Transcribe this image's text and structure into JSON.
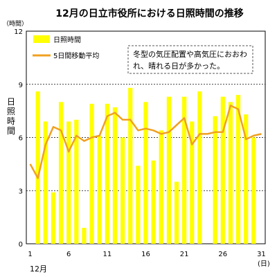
{
  "chart_data": {
    "type": "bar",
    "title": "12月の日立市役所における日照時間の推移",
    "y_unit": "（時間）",
    "ylabel": "日照時間",
    "xlabel_month": "12月",
    "x_unit": "(日)",
    "ylim": [
      0,
      12
    ],
    "yticks": [
      0,
      3,
      6,
      9,
      12
    ],
    "xticks": [
      1,
      6,
      11,
      16,
      21,
      26,
      31
    ],
    "grid": "horizontal dashed",
    "x": [
      1,
      2,
      3,
      4,
      5,
      6,
      7,
      8,
      9,
      10,
      11,
      12,
      13,
      14,
      15,
      16,
      17,
      18,
      19,
      20,
      21,
      22,
      23,
      24,
      25,
      26,
      27,
      28,
      29,
      30,
      31
    ],
    "series": [
      {
        "name": "日照時間",
        "kind": "bar",
        "color": "#ffff00",
        "values": [
          0,
          8.6,
          6.9,
          2.9,
          8.0,
          6.9,
          7.0,
          0.9,
          7.9,
          6.1,
          7.9,
          7.7,
          6.0,
          8.8,
          4.4,
          8.0,
          4.7,
          6.4,
          8.3,
          3.5,
          8.3,
          6.9,
          8.6,
          0,
          7.2,
          8.3,
          8.0,
          8.4,
          7.3,
          6.0,
          0
        ]
      },
      {
        "name": "5日間移動平均",
        "kind": "line",
        "color": "#f0a020",
        "values": [
          4.5,
          3.7,
          5.6,
          6.6,
          6.4,
          5.2,
          6.1,
          5.8,
          6.0,
          6.1,
          7.2,
          7.4,
          7.0,
          7.0,
          6.4,
          6.5,
          6.4,
          6.2,
          6.3,
          6.7,
          7.1,
          5.6,
          6.2,
          6.2,
          6.3,
          6.3,
          7.8,
          7.6,
          5.9,
          6.1,
          6.2
        ]
      }
    ],
    "legend_position": "top-left",
    "annotation": "冬型の気圧配置や高気圧におおわれ、晴れる日が多かった。"
  }
}
